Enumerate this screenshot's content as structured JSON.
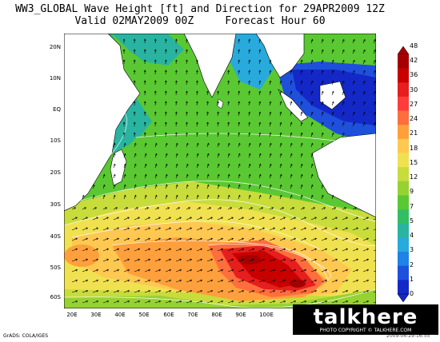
{
  "title": {
    "line1": "WW3_GLOBAL Wave Height [ft] and Direction for 29APR2009 12Z",
    "line2": "Valid 02MAY2009 00Z     Forecast Hour 60"
  },
  "map": {
    "longitude_labels": [
      "20E",
      "30E",
      "40E",
      "50E",
      "60E",
      "70E",
      "80E",
      "90E",
      "100E"
    ],
    "latitude_labels": [
      "20N",
      "10N",
      "EQ",
      "10S",
      "20S",
      "30S",
      "40S",
      "50S",
      "60S"
    ],
    "colors": {
      "land": "#ffffff",
      "water_low": "#1e46dc",
      "water_high": "#a00000"
    }
  },
  "colorbar": {
    "labels": [
      "48",
      "42",
      "36",
      "30",
      "27",
      "24",
      "21",
      "18",
      "15",
      "12",
      "9",
      "7",
      "5",
      "4",
      "3",
      "2",
      "1",
      "0"
    ],
    "colors": [
      "#a50000",
      "#c80000",
      "#e61e1e",
      "#ff3c3c",
      "#ff6e3c",
      "#ffa03c",
      "#ffc850",
      "#f0e150",
      "#c8dc3c",
      "#96d232",
      "#5ac832",
      "#32be64",
      "#28b4a0",
      "#28aadc",
      "#1e82e6",
      "#1e50dc",
      "#1428c8"
    ]
  },
  "footer": {
    "grads": "GrADS: COLA/IGES",
    "timestamp": "2009-04-29-16:55"
  },
  "logo": {
    "word": "talkhere",
    "sub": "PHOTO COPYRIGHT © TALKHERE.COM"
  }
}
